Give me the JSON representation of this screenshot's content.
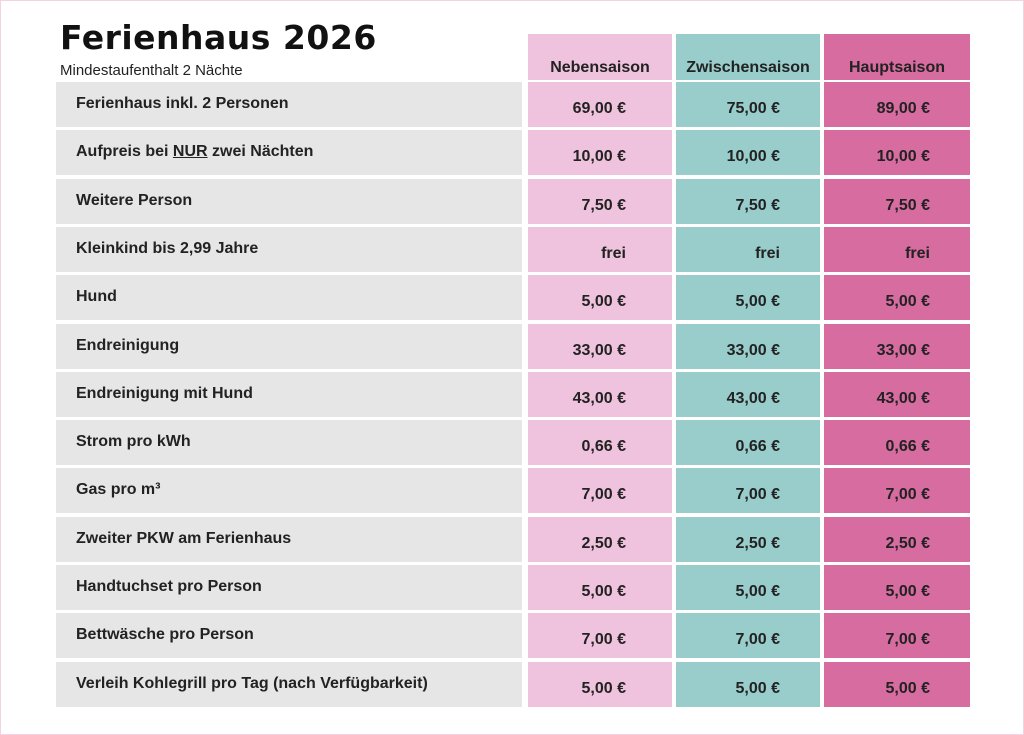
{
  "title": "Ferienhaus 2026",
  "subtitle": "Mindestaufenthalt 2 Nächte",
  "colors": {
    "label_bg": "#e6e6e6",
    "nebensaison": "#efc3dd",
    "zwischensaison": "#98cdcb",
    "hauptsaison": "#d76ca1"
  },
  "columns": [
    "Nebensaison",
    "Zwischensaison",
    "Hauptsaison"
  ],
  "rows": [
    {
      "label": "Ferienhaus inkl. 2 Personen",
      "values": [
        "69,00 €",
        "75,00 €",
        "89,00 €"
      ]
    },
    {
      "label_parts": [
        "Aufpreis bei ",
        "NUR",
        " zwei Nächten"
      ],
      "values": [
        "10,00 €",
        "10,00 €",
        "10,00 €"
      ]
    },
    {
      "label": "Weitere Person",
      "values": [
        "7,50 €",
        "7,50 €",
        "7,50 €"
      ]
    },
    {
      "label": "Kleinkind bis 2,99 Jahre",
      "values": [
        "frei",
        "frei",
        "frei"
      ]
    },
    {
      "label": "Hund",
      "values": [
        "5,00 €",
        "5,00 €",
        "5,00 €"
      ]
    },
    {
      "label": "Endreinigung",
      "values": [
        "33,00 €",
        "33,00 €",
        "33,00 €"
      ]
    },
    {
      "label": "Endreinigung mit Hund",
      "values": [
        "43,00 €",
        "43,00 €",
        "43,00 €"
      ]
    },
    {
      "label": "Strom pro kWh",
      "values": [
        "0,66 €",
        "0,66 €",
        "0,66 €"
      ]
    },
    {
      "label": "Gas pro m³",
      "values": [
        "7,00 €",
        "7,00 €",
        "7,00 €"
      ]
    },
    {
      "label": "Zweiter PKW am Ferienhaus",
      "values": [
        "2,50 €",
        "2,50 €",
        "2,50 €"
      ]
    },
    {
      "label": "Handtuchset pro Person",
      "values": [
        "5,00 €",
        "5,00 €",
        "5,00 €"
      ]
    },
    {
      "label": "Bettwäsche pro Person",
      "values": [
        "7,00 €",
        "7,00 €",
        "7,00 €"
      ]
    },
    {
      "label": "Verleih Kohlegrill pro Tag (nach Verfügbarkeit)",
      "values": [
        "5,00 €",
        "5,00 €",
        "5,00 €"
      ]
    }
  ]
}
